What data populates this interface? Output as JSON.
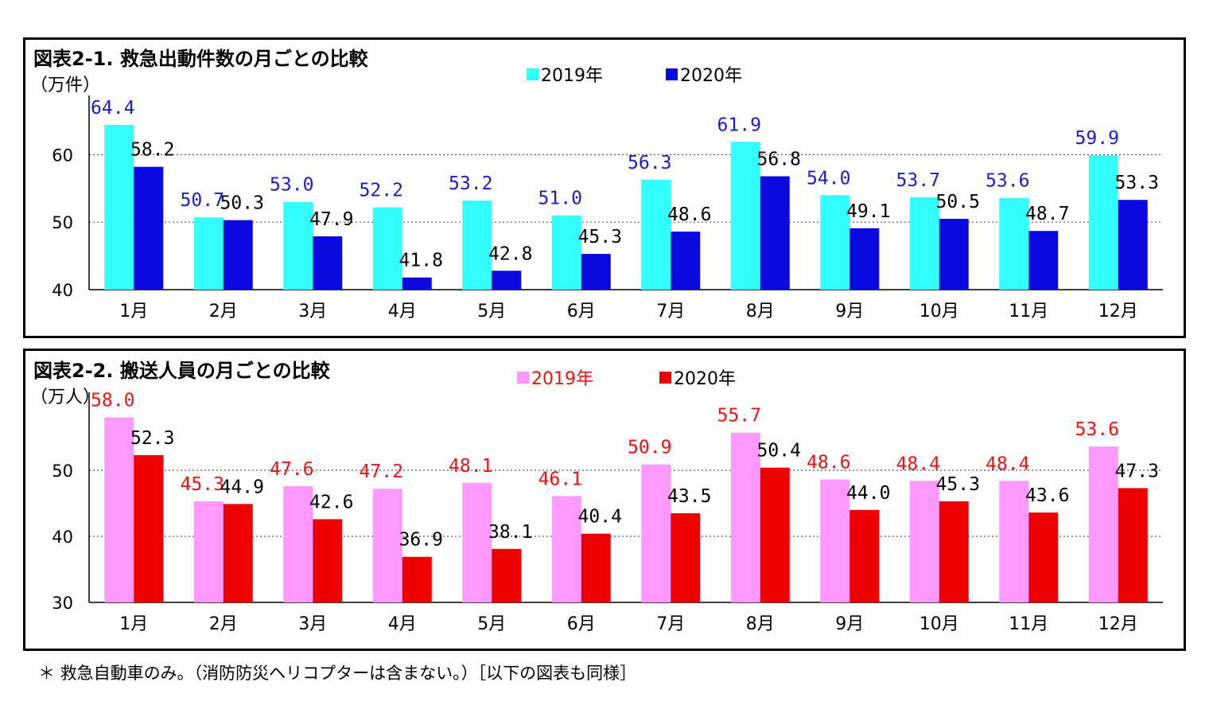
{
  "chart_data": [
    {
      "type": "bar",
      "title": "図表2-1. 救急出動件数の月ごとの比較",
      "ylabel": "（万件）",
      "ylim": [
        40,
        67
      ],
      "yticks": [
        "40",
        "50",
        "60"
      ],
      "ytick_values": [
        40,
        50,
        60
      ],
      "categories": [
        "1月",
        "2月",
        "3月",
        "4月",
        "5月",
        "6月",
        "7月",
        "8月",
        "9月",
        "10月",
        "11月",
        "12月"
      ],
      "series": [
        {
          "name": "2019年",
          "color": "#33ffff",
          "label_color": "#1a1ad6",
          "values": [
            64.4,
            50.7,
            53.0,
            52.2,
            53.2,
            51.0,
            56.3,
            61.9,
            54.0,
            53.7,
            53.6,
            59.9
          ],
          "labels": [
            "64.4",
            "50.7",
            "53.0",
            "52.2",
            "53.2",
            "51.0",
            "56.3",
            "61.9",
            "54.0",
            "53.7",
            "53.6",
            "59.9"
          ]
        },
        {
          "name": "2020年",
          "color": "#0a0ae0",
          "label_color": "#000000",
          "values": [
            58.2,
            50.3,
            47.9,
            41.8,
            42.8,
            45.3,
            48.6,
            56.8,
            49.1,
            50.5,
            48.7,
            53.3
          ],
          "labels": [
            "58.2",
            "50.3",
            "47.9",
            "41.8",
            "42.8",
            "45.3",
            "48.6",
            "56.8",
            "49.1",
            "50.5",
            "48.7",
            "53.3"
          ]
        }
      ],
      "grid": true,
      "legend": "top-center"
    },
    {
      "type": "bar",
      "title": "図表2-2. 搬送人員の月ごとの比較",
      "ylabel": "（万人）",
      "ylim": [
        30,
        60
      ],
      "yticks": [
        "30",
        "40",
        "50"
      ],
      "ytick_values": [
        30,
        40,
        50
      ],
      "categories": [
        "1月",
        "2月",
        "3月",
        "4月",
        "5月",
        "6月",
        "7月",
        "8月",
        "9月",
        "10月",
        "11月",
        "12月"
      ],
      "series": [
        {
          "name": "2019年",
          "color": "#ff99ff",
          "label_color": "#ee1111",
          "values": [
            58.0,
            45.3,
            47.6,
            47.2,
            48.1,
            46.1,
            50.9,
            55.7,
            48.6,
            48.4,
            48.4,
            53.6
          ],
          "labels": [
            "58.0",
            "45.3",
            "47.6",
            "47.2",
            "48.1",
            "46.1",
            "50.9",
            "55.7",
            "48.6",
            "48.4",
            "48.4",
            "53.6"
          ]
        },
        {
          "name": "2020年",
          "color": "#ee0000",
          "label_color": "#000000",
          "values": [
            52.3,
            44.9,
            42.6,
            36.9,
            38.1,
            40.4,
            43.5,
            50.4,
            44.0,
            45.3,
            43.6,
            47.3
          ],
          "labels": [
            "52.3",
            "44.9",
            "42.6",
            "36.9",
            "38.1",
            "40.4",
            "43.5",
            "50.4",
            "44.0",
            "45.3",
            "43.6",
            "47.3"
          ]
        }
      ],
      "grid": true,
      "legend": "top-center"
    }
  ],
  "footnote": "＊ 救急自動車のみ。（消防防災ヘリコプターは含まない。）［以下の図表も同様］"
}
